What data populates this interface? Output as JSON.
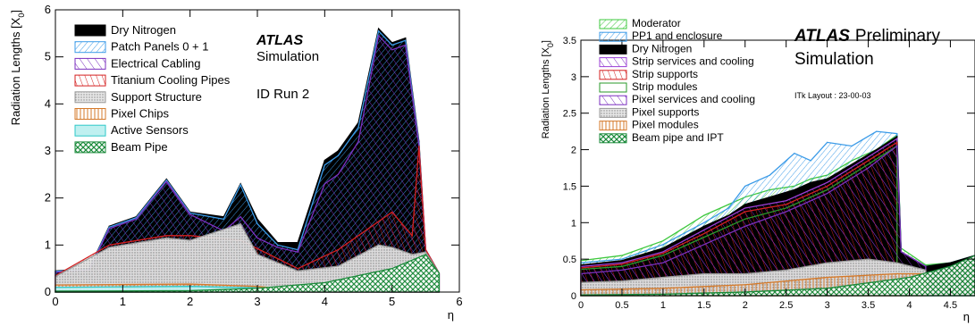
{
  "chart_data": [
    {
      "type": "area",
      "title": "",
      "xlabel": "η",
      "ylabel": "Radiation Lengths [X0]",
      "xlim": [
        0,
        6
      ],
      "ylim": [
        0,
        6
      ],
      "xticks": [
        "0",
        "1",
        "2",
        "3",
        "4",
        "5",
        "6"
      ],
      "yticks": [
        "0",
        "1",
        "2",
        "3",
        "4",
        "5",
        "6"
      ],
      "annotations": {
        "atlas": "ATLAS",
        "line2": "Simulation",
        "line3": "ID Run 2"
      },
      "legend_position": "top-left",
      "series": [
        {
          "name": "Dry Nitrogen",
          "color": "#000000",
          "x": [
            0,
            0.5,
            0.8,
            1.2,
            1.65,
            2.0,
            2.5,
            2.75,
            3.0,
            3.3,
            3.6,
            4.0,
            4.2,
            4.5,
            4.8,
            5.0,
            5.2,
            5.4,
            5.5,
            5.7
          ],
          "y": [
            0.45,
            0.5,
            1.4,
            1.6,
            2.4,
            1.7,
            1.6,
            2.3,
            1.55,
            1.05,
            1.05,
            2.8,
            3.0,
            3.6,
            5.6,
            5.3,
            5.4,
            3.2,
            0.9,
            0.4
          ]
        },
        {
          "name": "Patch Panels 0 + 1",
          "color": "#3b9be8",
          "x": [
            0,
            0.5,
            0.8,
            1.2,
            1.65,
            2.0,
            2.5,
            2.75,
            3.0,
            3.3,
            3.6,
            4.0,
            4.2,
            4.5,
            4.8,
            5.0,
            5.2,
            5.4,
            5.5,
            5.7
          ],
          "y": [
            0.44,
            0.49,
            1.38,
            1.58,
            2.38,
            1.68,
            1.55,
            2.28,
            1.45,
            1.0,
            0.9,
            2.7,
            2.9,
            3.5,
            5.55,
            5.25,
            5.35,
            3.15,
            0.9,
            0.4
          ]
        },
        {
          "name": "Electrical Cabling",
          "color": "#7b2fbf",
          "x": [
            0,
            0.5,
            0.8,
            1.2,
            1.65,
            2.0,
            2.5,
            2.75,
            3.0,
            3.3,
            3.6,
            4.0,
            4.2,
            4.5,
            4.8,
            5.0,
            5.2,
            5.4,
            5.5,
            5.7
          ],
          "y": [
            0.42,
            0.47,
            1.35,
            1.55,
            2.35,
            1.65,
            1.3,
            1.6,
            1.15,
            0.95,
            0.85,
            2.3,
            2.5,
            3.2,
            5.45,
            5.15,
            5.25,
            3.1,
            0.9,
            0.4
          ]
        },
        {
          "name": "Titanium Cooling Pipes",
          "color": "#d42020",
          "x": [
            0,
            0.8,
            1.65,
            2.0,
            2.75,
            3.6,
            4.2,
            4.8,
            5.0,
            5.3,
            5.4,
            5.5,
            5.7
          ],
          "y": [
            0.35,
            1.0,
            1.2,
            1.2,
            1.1,
            0.5,
            0.9,
            1.5,
            1.7,
            1.2,
            3.1,
            0.9,
            0.4
          ]
        },
        {
          "name": "Support Structure",
          "color": "#9a9a9a",
          "x": [
            0,
            0.8,
            1.65,
            2.0,
            2.75,
            3.0,
            3.6,
            4.2,
            4.8,
            5.0,
            5.3,
            5.5,
            5.7
          ],
          "y": [
            0.33,
            0.95,
            1.15,
            1.1,
            1.45,
            0.8,
            0.45,
            0.55,
            1.0,
            0.95,
            0.8,
            0.85,
            0.4
          ]
        },
        {
          "name": "Pixel Chips",
          "color": "#d4792a",
          "x": [
            0,
            1,
            2,
            3,
            3.5
          ],
          "y": [
            0.15,
            0.16,
            0.17,
            0.12,
            0.05
          ]
        },
        {
          "name": "Active Sensors",
          "color": "#2ec8c8",
          "x": [
            0,
            1,
            2,
            3,
            3.5
          ],
          "y": [
            0.1,
            0.11,
            0.12,
            0.09,
            0.03
          ]
        },
        {
          "name": "Beam Pipe",
          "color": "#1a8a3a",
          "x": [
            0,
            2,
            3,
            4,
            5,
            5.5,
            5.7
          ],
          "y": [
            0.02,
            0.03,
            0.08,
            0.2,
            0.5,
            0.8,
            0.4
          ]
        }
      ]
    },
    {
      "type": "area",
      "title": "",
      "xlabel": "η",
      "ylabel": "Radiation Lengths [X0]",
      "xlim": [
        0,
        4.8
      ],
      "ylim": [
        0,
        3.5
      ],
      "xticks": [
        "0",
        "0.5",
        "1",
        "1.5",
        "2",
        "2.5",
        "3",
        "3.5",
        "4",
        "4.5"
      ],
      "yticks": [
        "0",
        "0.5",
        "1",
        "1.5",
        "2",
        "2.5",
        "3",
        "3.5"
      ],
      "annotations": {
        "atlas": "ATLAS",
        "line1_rest": "Preliminary",
        "line2": "Simulation",
        "layout": "ITk Layout : 23-00-03"
      },
      "legend_position": "top-left",
      "series": [
        {
          "name": "Moderator",
          "color": "#3ec83e",
          "x": [
            0,
            0.5,
            1.0,
            1.5,
            1.8,
            2.0,
            2.3,
            2.6,
            2.8,
            3.0,
            3.3,
            3.6,
            3.85,
            3.9,
            4.2,
            4.5,
            4.8
          ],
          "y": [
            0.48,
            0.55,
            0.75,
            1.1,
            1.25,
            1.35,
            1.45,
            1.5,
            1.6,
            1.65,
            1.85,
            2.0,
            2.2,
            0.65,
            0.42,
            0.45,
            0.55
          ]
        },
        {
          "name": "PP1 and enclosure",
          "color": "#3b9be8",
          "x": [
            0,
            0.5,
            1.0,
            1.5,
            1.8,
            2.0,
            2.3,
            2.6,
            2.8,
            3.0,
            3.3,
            3.6,
            3.85,
            3.9,
            4.2,
            4.5,
            4.8
          ],
          "y": [
            0.45,
            0.5,
            0.7,
            1.0,
            1.2,
            1.5,
            1.65,
            1.95,
            1.85,
            2.1,
            2.05,
            2.25,
            2.22,
            0.6,
            0.4,
            0.45,
            0.55
          ]
        },
        {
          "name": "Dry Nitrogen",
          "color": "#000000",
          "x": [
            0,
            0.5,
            1.0,
            1.5,
            1.8,
            2.0,
            2.3,
            2.6,
            2.8,
            3.0,
            3.3,
            3.6,
            3.85,
            3.9,
            4.2,
            4.5,
            4.8
          ],
          "y": [
            0.42,
            0.48,
            0.65,
            0.95,
            1.1,
            1.25,
            1.35,
            1.45,
            1.55,
            1.6,
            1.8,
            2.0,
            2.18,
            0.6,
            0.4,
            0.45,
            0.55
          ]
        },
        {
          "name": "Strip services and cooling",
          "color": "#9b3fd6",
          "x": [
            0,
            0.5,
            1.0,
            1.5,
            2.0,
            2.5,
            3.0,
            3.5,
            3.85
          ],
          "y": [
            0.4,
            0.45,
            0.6,
            0.9,
            1.2,
            1.3,
            1.55,
            1.9,
            2.15
          ]
        },
        {
          "name": "Strip supports",
          "color": "#d42020",
          "x": [
            0,
            0.5,
            1.0,
            1.5,
            2.0,
            2.5,
            3.0,
            3.5,
            3.85
          ],
          "y": [
            0.38,
            0.43,
            0.58,
            0.85,
            1.15,
            1.25,
            1.5,
            1.85,
            2.1
          ]
        },
        {
          "name": "Strip modules",
          "color": "#2a9a2a",
          "x": [
            0,
            0.5,
            1.0,
            1.5,
            2.0,
            2.5,
            3.0,
            3.5,
            3.85
          ],
          "y": [
            0.36,
            0.4,
            0.55,
            0.8,
            1.05,
            1.2,
            1.45,
            1.8,
            2.05
          ]
        },
        {
          "name": "Pixel services and cooling",
          "color": "#7b2fbf",
          "x": [
            0,
            0.5,
            1.0,
            1.5,
            2.0,
            2.5,
            3.0,
            3.5,
            3.85,
            3.9,
            4.2
          ],
          "y": [
            0.3,
            0.35,
            0.45,
            0.7,
            0.95,
            1.15,
            1.4,
            1.75,
            2.05,
            0.6,
            0.4
          ]
        },
        {
          "name": "Pixel supports",
          "color": "#9a9a9a",
          "x": [
            0,
            0.5,
            1.0,
            1.5,
            2.0,
            2.5,
            3.0,
            3.5,
            3.85,
            4.2
          ],
          "y": [
            0.18,
            0.2,
            0.25,
            0.3,
            0.3,
            0.35,
            0.45,
            0.5,
            0.45,
            0.35
          ]
        },
        {
          "name": "Pixel modules",
          "color": "#d4792a",
          "x": [
            0,
            1.0,
            2.0,
            3.0,
            3.85,
            4.2
          ],
          "y": [
            0.08,
            0.1,
            0.15,
            0.25,
            0.3,
            0.3
          ]
        },
        {
          "name": "Beam pipe and IPT",
          "color": "#1a8a3a",
          "x": [
            0,
            1.0,
            2.0,
            3.0,
            4.0,
            4.5,
            4.8
          ],
          "y": [
            0.01,
            0.02,
            0.05,
            0.1,
            0.25,
            0.4,
            0.55
          ]
        }
      ]
    }
  ]
}
